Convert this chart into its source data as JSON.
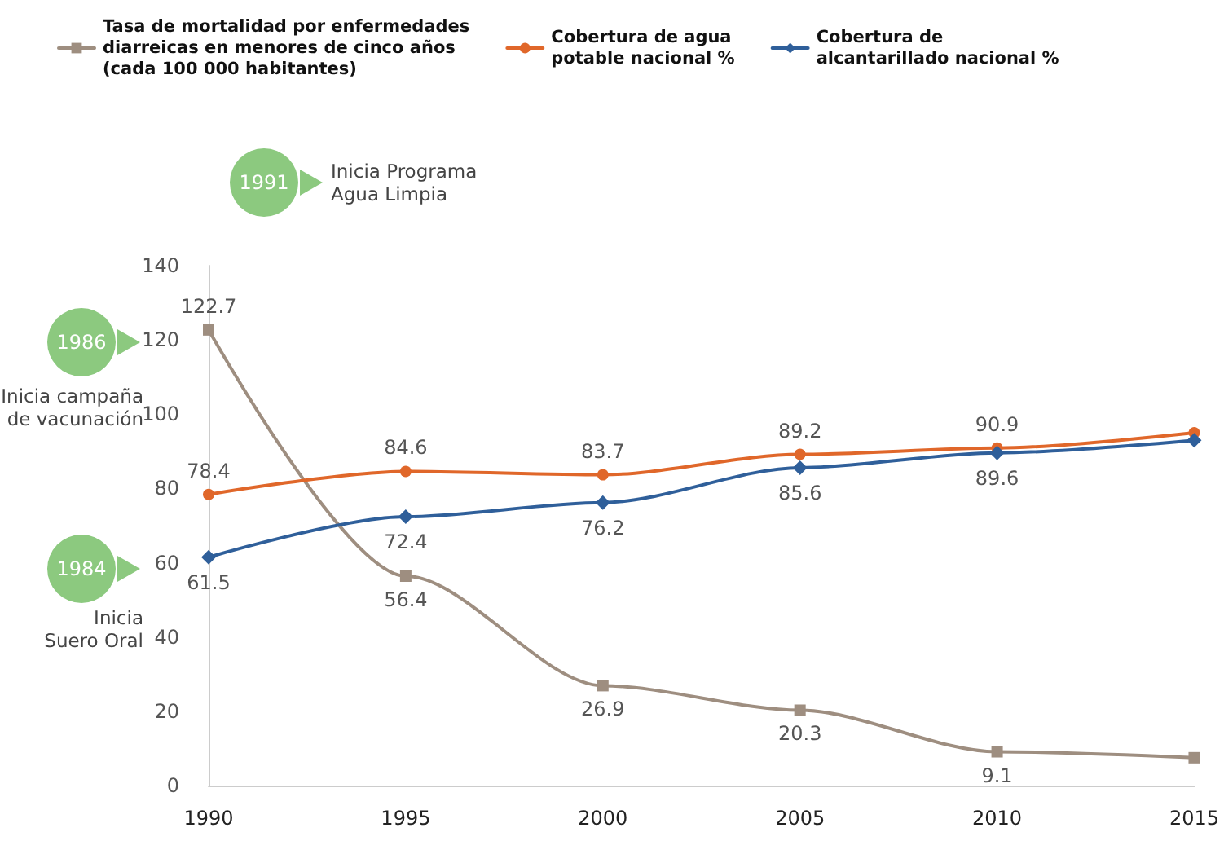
{
  "chart_data": {
    "type": "line",
    "categories": [
      "1990",
      "1995",
      "2000",
      "2005",
      "2010",
      "2015"
    ],
    "series": [
      {
        "name": "Tasa de mortalidad por enfermedades\ndiarreicas en menores de cinco años\n(cada 100 000 habitantes)",
        "color": "#9e8e80",
        "marker": "square",
        "values": [
          122.7,
          56.4,
          26.9,
          20.3,
          9.1,
          7.5
        ],
        "value_labels": [
          "122.7",
          "56.4",
          "26.9",
          "20.3",
          "9.1",
          null
        ]
      },
      {
        "name": "Cobertura de agua\npotable nacional %",
        "color": "#e0672a",
        "marker": "circle",
        "values": [
          78.4,
          84.6,
          83.7,
          89.2,
          90.9,
          95
        ],
        "value_labels": [
          "78.4",
          "84.6",
          "83.7",
          "89.2",
          "90.9",
          null
        ]
      },
      {
        "name": "Cobertura de\nalcantarillado nacional %",
        "color": "#2f5f9a",
        "marker": "diamond",
        "values": [
          61.5,
          72.4,
          76.2,
          85.6,
          89.6,
          93
        ],
        "value_labels": [
          "61.5",
          "72.4",
          "76.2",
          "85.6",
          "89.6",
          null
        ]
      }
    ],
    "ylim": [
      0,
      140
    ],
    "yticks": [
      0,
      20,
      40,
      60,
      80,
      100,
      120,
      140
    ],
    "grid": false,
    "legend": "top left",
    "annotations": [
      "1991",
      "Inicia Programa\nAgua Limpia",
      "1986",
      "Inicia campaña\nde vacunación",
      "1984",
      "Inicia\nSuero Oral"
    ]
  }
}
